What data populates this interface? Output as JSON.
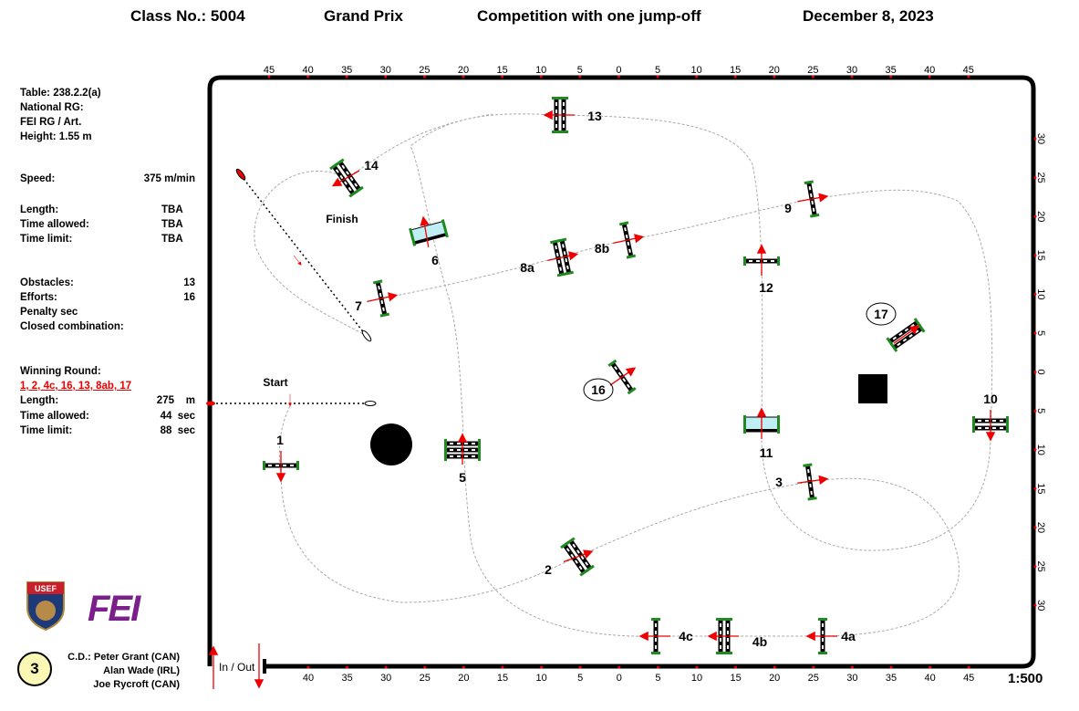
{
  "header": {
    "class_no": "Class No.: 5004",
    "class_name": "Grand Prix",
    "competition": "Competition with one jump-off",
    "date": "December 8, 2023"
  },
  "info": {
    "table": "Table: 238.2.2(a)",
    "national_rg": "National RG:",
    "fei_rg": "FEI RG / Art.",
    "height": "Height: 1.55  m",
    "speed_label": "Speed:",
    "speed_value": "375  m/min",
    "length_label": "Length:",
    "length_value": "TBA",
    "time_allowed_label": "Time allowed:",
    "time_allowed_value": "TBA",
    "time_limit_label": "Time limit:",
    "time_limit_value": "TBA",
    "obstacles_label": "Obstacles:",
    "obstacles_value": "13",
    "efforts_label": "Efforts:",
    "efforts_value": "16",
    "penalty_label": "Penalty sec",
    "closed_label": "Closed combination:"
  },
  "winning_round": {
    "title": "Winning Round:",
    "sequence": "1, 2, 4c, 16, 13, 8ab, 17",
    "length_label": "Length:",
    "length_value": "275    m",
    "time_allowed_label": "Time allowed:",
    "time_allowed_value": "44  sec",
    "time_limit_label": "Time limit:",
    "time_limit_value": "88  sec"
  },
  "footer": {
    "round_number": "3",
    "designers": [
      "C.D.: Peter Grant (CAN)",
      "Alan Wade (IRL)",
      "Joe Rycroft (CAN)"
    ],
    "in_out": "In / Out",
    "scale": "1:500",
    "logos": [
      "USEF",
      "FEI"
    ]
  },
  "course": {
    "start": "Start",
    "finish": "Finish",
    "obstacles": [
      "1",
      "2",
      "3",
      "4a",
      "4b",
      "4c",
      "5",
      "6",
      "7",
      "8a",
      "8b",
      "9",
      "10",
      "11",
      "12",
      "13",
      "14",
      "16",
      "17"
    ]
  },
  "rulers": {
    "top": [
      "45",
      "40",
      "35",
      "30",
      "25",
      "20",
      "15",
      "10",
      "5",
      "0",
      "5",
      "10",
      "15",
      "20",
      "25",
      "30",
      "35",
      "40",
      "45"
    ],
    "bottom": [
      "40",
      "35",
      "30",
      "25",
      "20",
      "15",
      "10",
      "5",
      "0",
      "5",
      "10",
      "15",
      "20",
      "25",
      "30",
      "35",
      "40",
      "45"
    ],
    "right": [
      "30",
      "25",
      "20",
      "15",
      "10",
      "5",
      "0",
      "5",
      "10",
      "15",
      "20",
      "25",
      "30"
    ]
  },
  "colors": {
    "arrow": "#e00000",
    "flag": "#1f8a1f",
    "water": "#bfeef5",
    "fei": "#7b1f8a"
  }
}
